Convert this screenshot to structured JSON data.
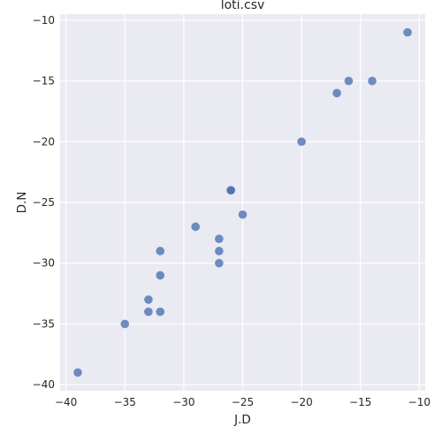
{
  "chart_data": {
    "type": "scatter",
    "title": "loti.csv",
    "xlabel": "J.D",
    "ylabel": "D.N",
    "xlim": [
      -40.5,
      -9.5
    ],
    "ylim": [
      -40.5,
      -9.5
    ],
    "xticks": [
      -40,
      -35,
      -30,
      -25,
      -20,
      -15,
      -10
    ],
    "yticks": [
      -40,
      -35,
      -30,
      -25,
      -20,
      -15,
      -10
    ],
    "xtick_labels": [
      "−40",
      "−35",
      "−30",
      "−25",
      "−20",
      "−15",
      "−10"
    ],
    "ytick_labels": [
      "−40",
      "−35",
      "−30",
      "−25",
      "−20",
      "−15",
      "−10"
    ],
    "grid": true,
    "color": "#4c72b0",
    "points": [
      {
        "x": -39,
        "y": -39
      },
      {
        "x": -35,
        "y": -35
      },
      {
        "x": -33,
        "y": -33
      },
      {
        "x": -33,
        "y": -34
      },
      {
        "x": -32,
        "y": -34
      },
      {
        "x": -32,
        "y": -31
      },
      {
        "x": -32,
        "y": -29
      },
      {
        "x": -29,
        "y": -27
      },
      {
        "x": -27,
        "y": -28
      },
      {
        "x": -27,
        "y": -29
      },
      {
        "x": -27,
        "y": -30
      },
      {
        "x": -26,
        "y": -24
      },
      {
        "x": -26,
        "y": -24
      },
      {
        "x": -25,
        "y": -26
      },
      {
        "x": -20,
        "y": -20
      },
      {
        "x": -17,
        "y": -16
      },
      {
        "x": -16,
        "y": -15
      },
      {
        "x": -14,
        "y": -15
      },
      {
        "x": -11,
        "y": -11
      }
    ]
  }
}
